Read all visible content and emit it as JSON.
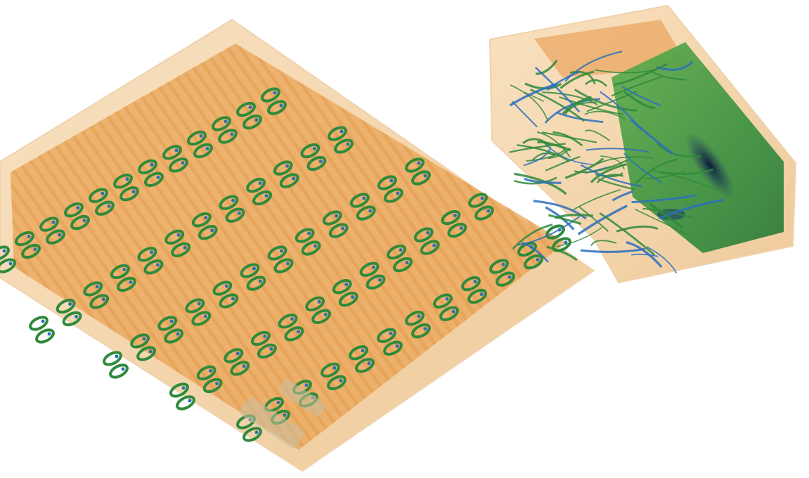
{
  "image": {
    "description_free": true,
    "background_color": "#ffffff"
  },
  "volumes": [
    {
      "id": "grid-volume",
      "shell_color": "#f2c994",
      "core_color": "#e79a45",
      "structure_color": "#2f8a3c",
      "highlight_color": "#2a6fbe",
      "rows": 8,
      "cells_per_row": 12
    },
    {
      "id": "fiber-volume",
      "shell_color": "#f2c994",
      "core_color": "#e79a45",
      "fiber_color": "#2f8a3c",
      "highlight_color": "#2a6fbe",
      "slab_color": "#3f9b43",
      "dense_color": "#1f3a66"
    }
  ],
  "palette": {
    "accent": "#e79a45",
    "shell": "#f2c994",
    "green": "#2f8a3c",
    "blue": "#2a6fbe",
    "dark": "#1f3a66"
  }
}
